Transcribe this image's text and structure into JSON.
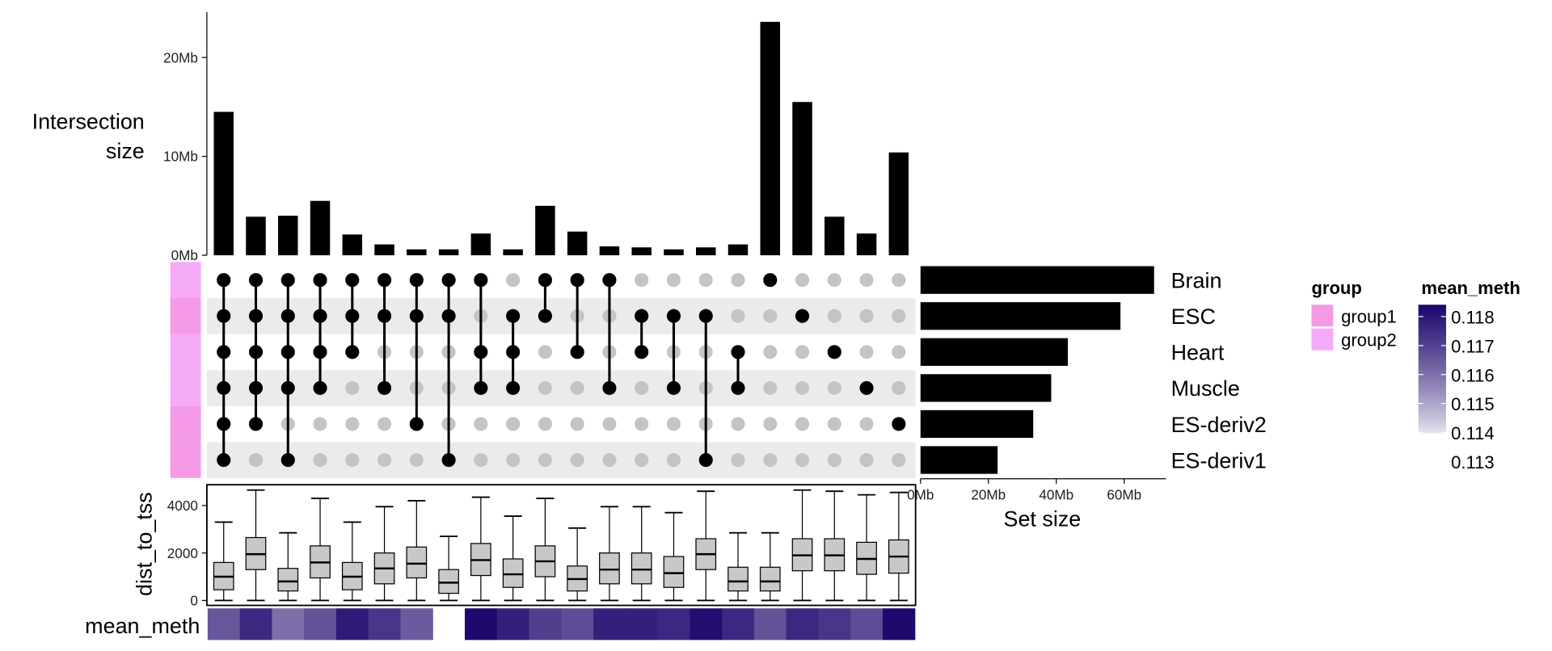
{
  "chart_data": {
    "type": "upset",
    "intersection_axis": {
      "label_line1": "Intersection",
      "label_line2": "size",
      "ticks": [
        "0Mb",
        "10Mb",
        "20Mb"
      ],
      "tick_values": [
        0,
        10,
        20
      ],
      "ylim": [
        0,
        24.5
      ]
    },
    "sets": [
      {
        "name": "Brain",
        "size": 68.8,
        "group": "group2"
      },
      {
        "name": "ESC",
        "size": 58.9,
        "group": "group1"
      },
      {
        "name": "Heart",
        "size": 43.4,
        "group": "group2"
      },
      {
        "name": "Muscle",
        "size": 38.5,
        "group": "group2"
      },
      {
        "name": "ES-deriv2",
        "size": 33.2,
        "group": "group1"
      },
      {
        "name": "ES-deriv1",
        "size": 22.7,
        "group": "group1"
      }
    ],
    "set_size_axis": {
      "label": "Set size",
      "ticks": [
        "0Mb",
        "20Mb",
        "40Mb",
        "60Mb"
      ],
      "tick_values": [
        0,
        20,
        40,
        60
      ],
      "xlim": [
        0,
        72
      ]
    },
    "intersections": [
      {
        "sets": [
          "Brain",
          "ESC",
          "Heart",
          "Muscle",
          "ES-deriv2",
          "ES-deriv1"
        ],
        "size": 14.5,
        "box": [
          0,
          450,
          1000,
          1600,
          3300
        ],
        "mean_meth": 0.1163
      },
      {
        "sets": [
          "Brain",
          "ESC",
          "Heart",
          "Muscle",
          "ES-deriv2"
        ],
        "size": 3.9,
        "box": [
          0,
          1300,
          1950,
          2650,
          4650
        ],
        "mean_meth": 0.1173
      },
      {
        "sets": [
          "Brain",
          "ESC",
          "Heart",
          "Muscle",
          "ES-deriv1"
        ],
        "size": 4.0,
        "box": [
          0,
          400,
          800,
          1350,
          2850
        ],
        "mean_meth": 0.1158
      },
      {
        "sets": [
          "Brain",
          "ESC",
          "Heart",
          "Muscle"
        ],
        "size": 5.5,
        "box": [
          0,
          950,
          1600,
          2300,
          4300
        ],
        "mean_meth": 0.1164
      },
      {
        "sets": [
          "Brain",
          "ESC",
          "Heart"
        ],
        "size": 2.1,
        "box": [
          0,
          450,
          1000,
          1600,
          3300
        ],
        "mean_meth": 0.1176
      },
      {
        "sets": [
          "Brain",
          "ESC",
          "Muscle"
        ],
        "size": 1.1,
        "box": [
          0,
          700,
          1350,
          2000,
          3950
        ],
        "mean_meth": 0.117
      },
      {
        "sets": [
          "Brain",
          "ESC",
          "ES-deriv2"
        ],
        "size": 0.6,
        "box": [
          0,
          950,
          1550,
          2250,
          4200
        ],
        "mean_meth": 0.1162
      },
      {
        "sets": [
          "Brain",
          "ESC",
          "ES-deriv1"
        ],
        "size": 0.6,
        "box": [
          0,
          300,
          750,
          1300,
          2700
        ],
        "mean_meth": null
      },
      {
        "sets": [
          "Brain",
          "Heart",
          "Muscle"
        ],
        "size": 2.2,
        "box": [
          0,
          1050,
          1700,
          2400,
          4350
        ],
        "mean_meth": 0.118
      },
      {
        "sets": [
          "ESC",
          "Heart",
          "Muscle"
        ],
        "size": 0.6,
        "box": [
          0,
          550,
          1100,
          1750,
          3550
        ],
        "mean_meth": 0.1175
      },
      {
        "sets": [
          "Brain",
          "ESC"
        ],
        "size": 5.0,
        "box": [
          0,
          1000,
          1650,
          2300,
          4300
        ],
        "mean_meth": 0.1168
      },
      {
        "sets": [
          "Brain",
          "Heart"
        ],
        "size": 2.4,
        "box": [
          0,
          400,
          900,
          1450,
          3050
        ],
        "mean_meth": 0.1165
      },
      {
        "sets": [
          "Brain",
          "Muscle"
        ],
        "size": 0.9,
        "box": [
          0,
          700,
          1300,
          2000,
          3950
        ],
        "mean_meth": 0.1175
      },
      {
        "sets": [
          "ESC",
          "Heart"
        ],
        "size": 0.8,
        "box": [
          0,
          700,
          1300,
          2000,
          3950
        ],
        "mean_meth": 0.1175
      },
      {
        "sets": [
          "ESC",
          "Muscle"
        ],
        "size": 0.6,
        "box": [
          0,
          550,
          1150,
          1850,
          3700
        ],
        "mean_meth": 0.1173
      },
      {
        "sets": [
          "ESC",
          "ES-deriv1"
        ],
        "size": 0.8,
        "box": [
          0,
          1300,
          1950,
          2600,
          4600
        ],
        "mean_meth": 0.1179
      },
      {
        "sets": [
          "Heart",
          "Muscle"
        ],
        "size": 1.1,
        "box": [
          0,
          400,
          800,
          1400,
          2850
        ],
        "mean_meth": 0.1173
      },
      {
        "sets": [
          "Brain"
        ],
        "size": 23.6,
        "box": [
          0,
          400,
          800,
          1400,
          2850
        ],
        "mean_meth": 0.1164
      },
      {
        "sets": [
          "ESC"
        ],
        "size": 15.5,
        "box": [
          0,
          1250,
          1900,
          2600,
          4650
        ],
        "mean_meth": 0.1173
      },
      {
        "sets": [
          "Heart"
        ],
        "size": 3.9,
        "box": [
          0,
          1250,
          1900,
          2600,
          4600
        ],
        "mean_meth": 0.117
      },
      {
        "sets": [
          "Muscle"
        ],
        "size": 2.2,
        "box": [
          0,
          1100,
          1750,
          2450,
          4450
        ],
        "mean_meth": 0.1165
      },
      {
        "sets": [
          "ES-deriv2"
        ],
        "size": 10.4,
        "box": [
          0,
          1150,
          1850,
          2550,
          4550
        ],
        "mean_meth": 0.118
      }
    ],
    "boxplot_axis": {
      "label": "dist_to_tss",
      "ticks": [
        "0",
        "2000",
        "4000"
      ],
      "tick_values": [
        0,
        2000,
        4000
      ],
      "ylim": [
        -200,
        4900
      ]
    },
    "heatmap_label": "mean_meth",
    "legend_group": {
      "title": "group",
      "items": [
        {
          "label": "group1",
          "color": "#f59ae6"
        },
        {
          "label": "group2",
          "color": "#f5aaf8"
        }
      ]
    },
    "legend_colorbar": {
      "title": "mean_meth",
      "ticks": [
        "0.118",
        "0.117",
        "0.116",
        "0.115",
        "0.114",
        "0.113"
      ],
      "low_color": "#ffffff",
      "high_color": "#180068",
      "range": [
        0.1135,
        0.1182
      ]
    },
    "colors": {
      "bar": "#000000",
      "dot_active": "#000000",
      "dot_inactive": "#c4c4c4",
      "stripe": "#ebebeb",
      "box_fill": "#c8c8c8"
    }
  }
}
